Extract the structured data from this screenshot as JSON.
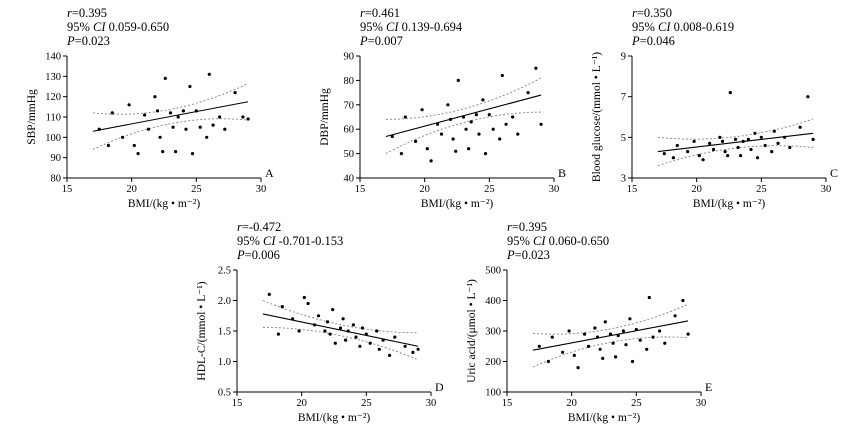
{
  "chart_data": [
    {
      "type": "scatter",
      "panel_label": "A",
      "stats": {
        "r_label": "r",
        "r_value": "=0.395",
        "ci_prefix": "95% ",
        "ci_label": "CI",
        "ci_value": " 0.059-0.650",
        "p_label": "P",
        "p_value": "=0.023"
      },
      "xlabel": "BMI/(kg • m⁻²)",
      "ylabel": "SBP/mmHg",
      "xlim": [
        15,
        30
      ],
      "ylim": [
        80,
        140
      ],
      "xticks": [
        15,
        20,
        25,
        30
      ],
      "ytick_values": [
        80,
        90,
        100,
        110,
        120,
        130,
        140
      ],
      "ytick_labels": [
        "80",
        "90",
        "100",
        "110",
        "120",
        "130",
        "140"
      ],
      "regression": {
        "x1": 17,
        "y1": 103,
        "x2": 29,
        "y2": 117.5
      },
      "band": {
        "mid": 3.5,
        "end": 9
      },
      "points": [
        [
          17.5,
          104
        ],
        [
          18.2,
          96
        ],
        [
          18.5,
          112
        ],
        [
          19.3,
          100
        ],
        [
          19.8,
          116
        ],
        [
          20.2,
          96
        ],
        [
          20.5,
          92
        ],
        [
          21,
          111
        ],
        [
          21.3,
          104
        ],
        [
          21.8,
          120
        ],
        [
          22,
          113
        ],
        [
          22.2,
          100
        ],
        [
          22.4,
          93
        ],
        [
          22.6,
          129
        ],
        [
          23,
          112
        ],
        [
          23.2,
          105
        ],
        [
          23.4,
          93
        ],
        [
          23.6,
          110
        ],
        [
          24,
          113
        ],
        [
          24.2,
          104
        ],
        [
          24.5,
          125
        ],
        [
          24.7,
          92
        ],
        [
          25,
          113
        ],
        [
          25.3,
          105
        ],
        [
          25.8,
          100
        ],
        [
          26,
          131
        ],
        [
          26.3,
          106
        ],
        [
          26.8,
          110
        ],
        [
          27.2,
          104
        ],
        [
          28,
          122
        ],
        [
          28.6,
          110
        ],
        [
          29,
          109
        ]
      ]
    },
    {
      "type": "scatter",
      "panel_label": "B",
      "stats": {
        "r_label": "r",
        "r_value": "=0.461",
        "ci_prefix": "95% ",
        "ci_label": "CI",
        "ci_value": " 0.139-0.694",
        "p_label": "P",
        "p_value": "=0.007"
      },
      "xlabel": "BMI/(kg • m⁻²)",
      "ylabel": "DBP/mmHg",
      "xlim": [
        15,
        30
      ],
      "ylim": [
        40,
        90
      ],
      "xticks": [
        15,
        20,
        25,
        30
      ],
      "ytick_values": [
        40,
        50,
        60,
        70,
        80,
        90
      ],
      "ytick_labels": [
        "40",
        "50",
        "60",
        "70",
        "80",
        "90"
      ],
      "regression": {
        "x1": 17,
        "y1": 57,
        "x2": 29,
        "y2": 74
      },
      "band": {
        "mid": 2.8,
        "end": 7
      },
      "points": [
        [
          17.5,
          57
        ],
        [
          18.2,
          50
        ],
        [
          18.5,
          65
        ],
        [
          19.3,
          55
        ],
        [
          19.8,
          68
        ],
        [
          20.2,
          52
        ],
        [
          20.5,
          47
        ],
        [
          21,
          62
        ],
        [
          21.3,
          58
        ],
        [
          21.8,
          70
        ],
        [
          22,
          64
        ],
        [
          22.2,
          56
        ],
        [
          22.4,
          51
        ],
        [
          22.6,
          80
        ],
        [
          23,
          65
        ],
        [
          23.2,
          60
        ],
        [
          23.4,
          52
        ],
        [
          23.6,
          63
        ],
        [
          24,
          66
        ],
        [
          24.2,
          58
        ],
        [
          24.5,
          72
        ],
        [
          24.7,
          50
        ],
        [
          25,
          66
        ],
        [
          25.3,
          60
        ],
        [
          25.8,
          56
        ],
        [
          26,
          82
        ],
        [
          26.3,
          62
        ],
        [
          26.8,
          65
        ],
        [
          27.2,
          58
        ],
        [
          28,
          75
        ],
        [
          28.6,
          85
        ],
        [
          29,
          62
        ]
      ]
    },
    {
      "type": "scatter",
      "panel_label": "C",
      "stats": {
        "r_label": "r",
        "r_value": "=0.350",
        "ci_prefix": "95% ",
        "ci_label": "CI",
        "ci_value": " 0.008-0.619",
        "p_label": "P",
        "p_value": "=0.046"
      },
      "xlabel": "BMI/(kg • m⁻²)",
      "ylabel": "Blood glucose/(mmol • L⁻¹)",
      "xlim": [
        15,
        30
      ],
      "ylim": [
        3,
        9
      ],
      "xticks": [
        15,
        20,
        25,
        30
      ],
      "ytick_values": [
        3,
        5,
        7,
        9
      ],
      "ytick_labels": [
        "3",
        "5",
        "7",
        "9"
      ],
      "regression": {
        "x1": 17,
        "y1": 4.3,
        "x2": 29,
        "y2": 5.2
      },
      "band": {
        "mid": 0.28,
        "end": 0.7
      },
      "points": [
        [
          17.5,
          4.2
        ],
        [
          18.2,
          4.0
        ],
        [
          18.5,
          4.6
        ],
        [
          19.3,
          4.3
        ],
        [
          19.8,
          4.8
        ],
        [
          20.2,
          4.1
        ],
        [
          20.5,
          3.9
        ],
        [
          21,
          4.7
        ],
        [
          21.3,
          4.4
        ],
        [
          21.8,
          5.0
        ],
        [
          22,
          4.8
        ],
        [
          22.2,
          4.3
        ],
        [
          22.4,
          4.1
        ],
        [
          22.6,
          7.2
        ],
        [
          23,
          4.9
        ],
        [
          23.2,
          4.5
        ],
        [
          23.4,
          4.1
        ],
        [
          23.6,
          4.8
        ],
        [
          24,
          4.9
        ],
        [
          24.2,
          4.4
        ],
        [
          24.5,
          5.2
        ],
        [
          24.7,
          4.0
        ],
        [
          25,
          5.0
        ],
        [
          25.3,
          4.6
        ],
        [
          25.8,
          4.3
        ],
        [
          26,
          5.3
        ],
        [
          26.3,
          4.7
        ],
        [
          26.8,
          5.0
        ],
        [
          27.2,
          4.5
        ],
        [
          28,
          5.5
        ],
        [
          28.6,
          7.0
        ],
        [
          29,
          4.9
        ]
      ]
    },
    {
      "type": "scatter",
      "panel_label": "D",
      "stats": {
        "r_label": "r",
        "r_value": "=-0.472",
        "ci_prefix": "95% ",
        "ci_label": "CI",
        "ci_value": " -0.701-0.153",
        "p_label": "P",
        "p_value": "=0.006"
      },
      "xlabel": "BMI/(kg • m⁻²)",
      "ylabel": "HDL-C/(mmol • L⁻¹)",
      "xlim": [
        15,
        30
      ],
      "ylim": [
        0.5,
        2.5
      ],
      "xticks": [
        15,
        20,
        25,
        30
      ],
      "ytick_values": [
        0.5,
        1.0,
        1.5,
        2.0,
        2.5
      ],
      "ytick_labels": [
        "0.5",
        "1.0",
        "1.5",
        "2.0",
        "2.5"
      ],
      "regression": {
        "x1": 17,
        "y1": 1.78,
        "x2": 29,
        "y2": 1.25
      },
      "band": {
        "mid": 0.09,
        "end": 0.22
      },
      "points": [
        [
          17.5,
          2.1
        ],
        [
          18.2,
          1.45
        ],
        [
          18.5,
          1.9
        ],
        [
          19.3,
          1.7
        ],
        [
          19.8,
          1.5
        ],
        [
          20.2,
          2.05
        ],
        [
          20.5,
          1.95
        ],
        [
          21,
          1.6
        ],
        [
          21.3,
          1.75
        ],
        [
          21.8,
          1.5
        ],
        [
          22,
          1.65
        ],
        [
          22.2,
          1.45
        ],
        [
          22.4,
          1.85
        ],
        [
          22.6,
          1.3
        ],
        [
          23,
          1.55
        ],
        [
          23.2,
          1.7
        ],
        [
          23.4,
          1.35
        ],
        [
          23.6,
          1.5
        ],
        [
          24,
          1.6
        ],
        [
          24.2,
          1.4
        ],
        [
          24.5,
          1.25
        ],
        [
          24.7,
          1.55
        ],
        [
          25,
          1.45
        ],
        [
          25.3,
          1.3
        ],
        [
          25.8,
          1.5
        ],
        [
          26,
          1.2
        ],
        [
          26.3,
          1.35
        ],
        [
          26.8,
          1.1
        ],
        [
          27.2,
          1.4
        ],
        [
          28,
          1.25
        ],
        [
          28.6,
          1.15
        ],
        [
          29,
          1.2
        ]
      ]
    },
    {
      "type": "scatter",
      "panel_label": "E",
      "stats": {
        "r_label": "r",
        "r_value": "=0.395",
        "ci_prefix": "95% ",
        "ci_label": "CI",
        "ci_value": " 0.060-0.650",
        "p_label": "P",
        "p_value": "=0.023"
      },
      "xlabel": "BMI/(kg • m⁻²)",
      "ylabel": "Uric acid/(μmol • L⁻¹)",
      "xlim": [
        15,
        30
      ],
      "ylim": [
        100,
        500
      ],
      "xticks": [
        15,
        20,
        25,
        30
      ],
      "ytick_values": [
        100,
        200,
        300,
        400,
        500
      ],
      "ytick_labels": [
        "100",
        "200",
        "300",
        "400",
        "500"
      ],
      "regression": {
        "x1": 17,
        "y1": 237,
        "x2": 29,
        "y2": 333
      },
      "band": {
        "mid": 22,
        "end": 55
      },
      "points": [
        [
          17.5,
          250
        ],
        [
          18.2,
          200
        ],
        [
          18.5,
          280
        ],
        [
          19.3,
          230
        ],
        [
          19.8,
          300
        ],
        [
          20.2,
          220
        ],
        [
          20.5,
          180
        ],
        [
          21,
          290
        ],
        [
          21.3,
          250
        ],
        [
          21.8,
          310
        ],
        [
          22,
          280
        ],
        [
          22.2,
          240
        ],
        [
          22.4,
          210
        ],
        [
          22.6,
          330
        ],
        [
          23,
          290
        ],
        [
          23.2,
          260
        ],
        [
          23.4,
          215
        ],
        [
          23.6,
          285
        ],
        [
          24,
          300
        ],
        [
          24.2,
          255
        ],
        [
          24.5,
          340
        ],
        [
          24.7,
          200
        ],
        [
          25,
          305
        ],
        [
          25.3,
          270
        ],
        [
          25.8,
          240
        ],
        [
          26,
          410
        ],
        [
          26.3,
          280
        ],
        [
          26.8,
          300
        ],
        [
          27.2,
          260
        ],
        [
          28,
          350
        ],
        [
          28.6,
          400
        ],
        [
          29,
          290
        ]
      ]
    }
  ]
}
